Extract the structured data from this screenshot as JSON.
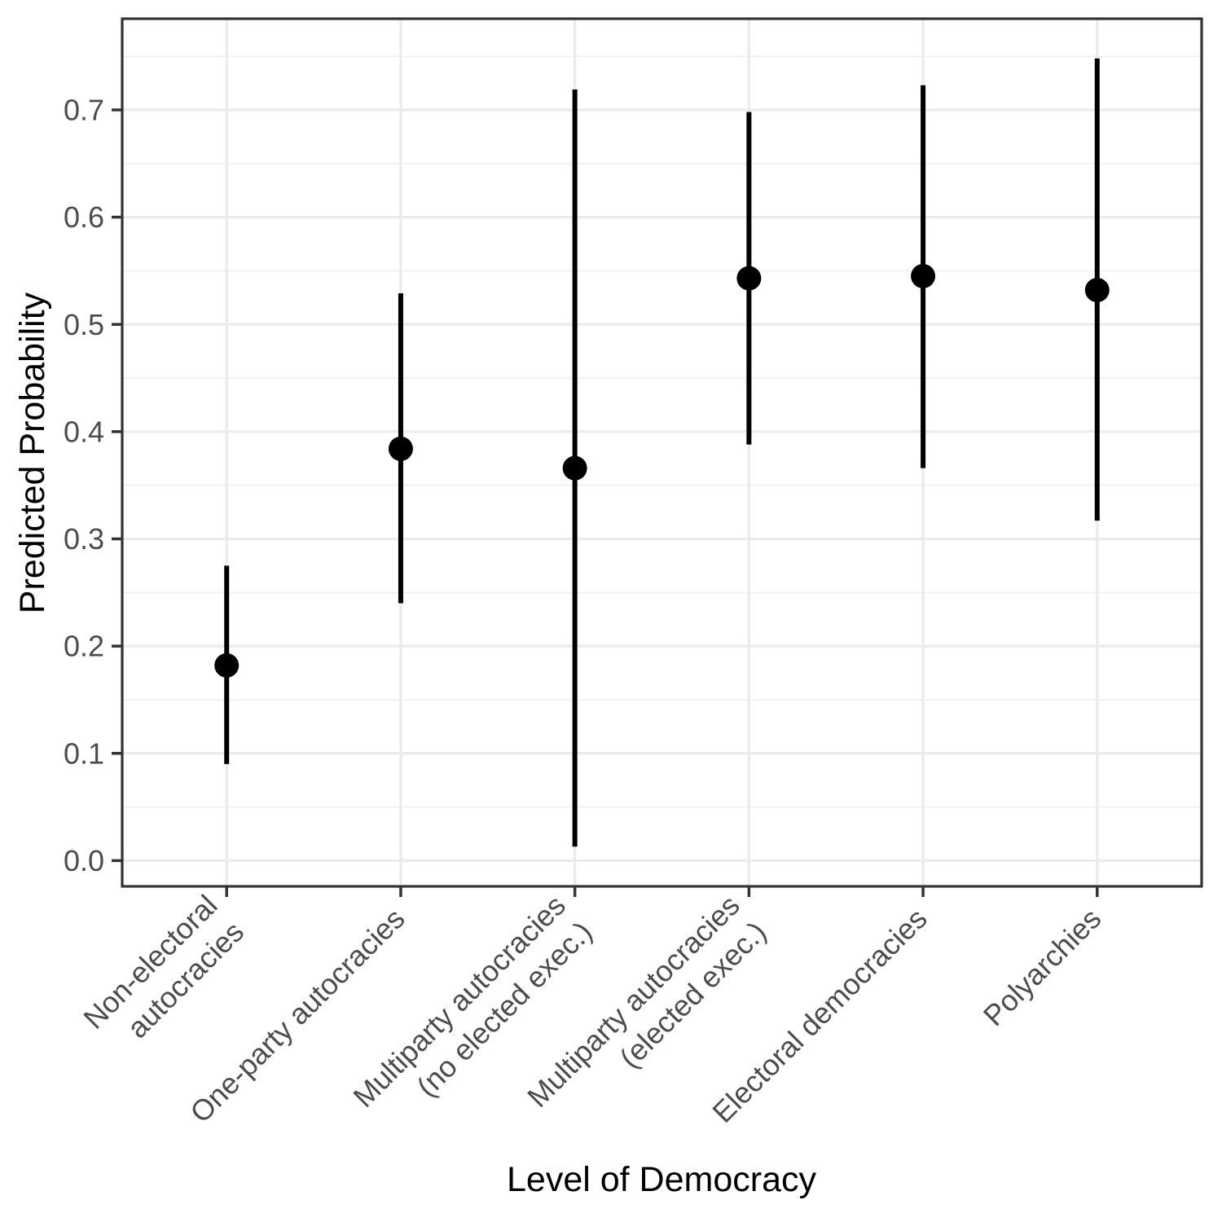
{
  "chart_data": {
    "type": "pointrange",
    "title": "",
    "xlabel": "Level of Democracy",
    "ylabel": "Predicted Probability",
    "legend": "none",
    "grid": {
      "major": true,
      "minor": true
    },
    "x_tick_angle_deg": 45,
    "ylim": [
      -0.024,
      0.785
    ],
    "y_ticks": [
      0.0,
      0.1,
      0.2,
      0.3,
      0.4,
      0.5,
      0.6,
      0.7
    ],
    "y_tick_labels": [
      "0.0",
      "0.1",
      "0.2",
      "0.3",
      "0.4",
      "0.5",
      "0.6",
      "0.7"
    ],
    "y_minor_gridlines": [
      0.05,
      0.15,
      0.25,
      0.35,
      0.45,
      0.55,
      0.65,
      0.75
    ],
    "categories": [
      "Non-electoral autocracies",
      "One-party autocracies",
      "Multiparty autocracies (no elected exec.)",
      "Multiparty autocracies (elected exec.)",
      "Electoral democracies",
      "Polyarchies"
    ],
    "category_label_lines": [
      [
        "Non-electoral",
        "autocracies"
      ],
      [
        "One-party autocracies"
      ],
      [
        "Multiparty autocracies",
        "(no elected exec.)"
      ],
      [
        "Multiparty autocracies",
        "(elected exec.)"
      ],
      [
        "Electoral democracies"
      ],
      [
        "Polyarchies"
      ]
    ],
    "points": [
      {
        "category": "Non-electoral autocracies",
        "estimate": 0.182,
        "ci_low": 0.09,
        "ci_high": 0.275
      },
      {
        "category": "One-party autocracies",
        "estimate": 0.384,
        "ci_low": 0.24,
        "ci_high": 0.529
      },
      {
        "category": "Multiparty autocracies (no elected exec.)",
        "estimate": 0.366,
        "ci_low": 0.013,
        "ci_high": 0.719
      },
      {
        "category": "Multiparty autocracies (elected exec.)",
        "estimate": 0.543,
        "ci_low": 0.388,
        "ci_high": 0.698
      },
      {
        "category": "Electoral democracies",
        "estimate": 0.545,
        "ci_low": 0.366,
        "ci_high": 0.723
      },
      {
        "category": "Polyarchies",
        "estimate": 0.532,
        "ci_low": 0.317,
        "ci_high": 0.748
      }
    ],
    "colors": {
      "point": "#000000",
      "errorbar": "#000000",
      "tick_label": "#4D4D4D",
      "axis_title": "#000000",
      "panel_border": "#333333",
      "tick_mark": "#333333",
      "gridline_major": "#EBEBEB",
      "gridline_minor": "#EFEFEF",
      "background": "#FFFFFF"
    }
  }
}
